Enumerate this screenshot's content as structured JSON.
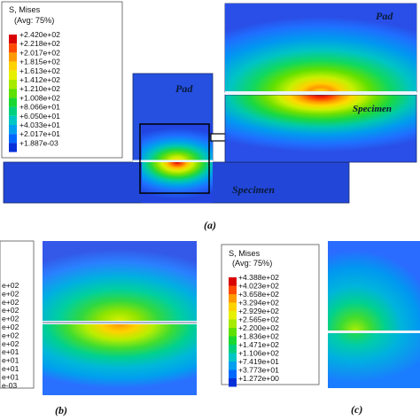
{
  "legend_main": {
    "title_line1": "S, Mises",
    "title_line2": "(Avg: 75%)",
    "values": [
      "+2.420e+02",
      "+2.218e+02",
      "+2.017e+02",
      "+1.815e+02",
      "+1.613e+02",
      "+1.412e+02",
      "+1.210e+02",
      "+1.008e+02",
      "+8.066e+01",
      "+6.050e+01",
      "+4.033e+01",
      "+2.017e+01",
      "+1.887e-03"
    ]
  },
  "legend_b": {
    "values": [
      "e+02",
      "e+02",
      "e+02",
      "e+02",
      "e+02",
      "e+02",
      "e+02",
      "e+02",
      "e+01",
      "e+01",
      "e+01",
      "e+01",
      "e-03"
    ]
  },
  "legend_c": {
    "title_line1": "S, Mises",
    "title_line2": "(Avg: 75%)",
    "values": [
      "+4.388e+02",
      "+4.023e+02",
      "+3.658e+02",
      "+3.294e+02",
      "+2.929e+02",
      "+2.565e+02",
      "+2.200e+02",
      "+1.836e+02",
      "+1.471e+02",
      "+1.106e+02",
      "+7.419e+01",
      "+3.773e+01",
      "+1.272e+00"
    ]
  },
  "contour_colors": [
    "#d90000",
    "#ff4a00",
    "#ff9a00",
    "#ffd200",
    "#e6f000",
    "#a6ea00",
    "#5ee000",
    "#1ad830",
    "#00d07e",
    "#00c6c6",
    "#00a0ee",
    "#0068ff",
    "#0830d8"
  ],
  "labels": {
    "pad_small": "Pad",
    "pad_zoom": "Pad",
    "specimen_main": "Specimen",
    "specimen_zoom": "Specimen",
    "panel_a": "(a)",
    "panel_b": "(b)",
    "panel_c": "(c)"
  }
}
